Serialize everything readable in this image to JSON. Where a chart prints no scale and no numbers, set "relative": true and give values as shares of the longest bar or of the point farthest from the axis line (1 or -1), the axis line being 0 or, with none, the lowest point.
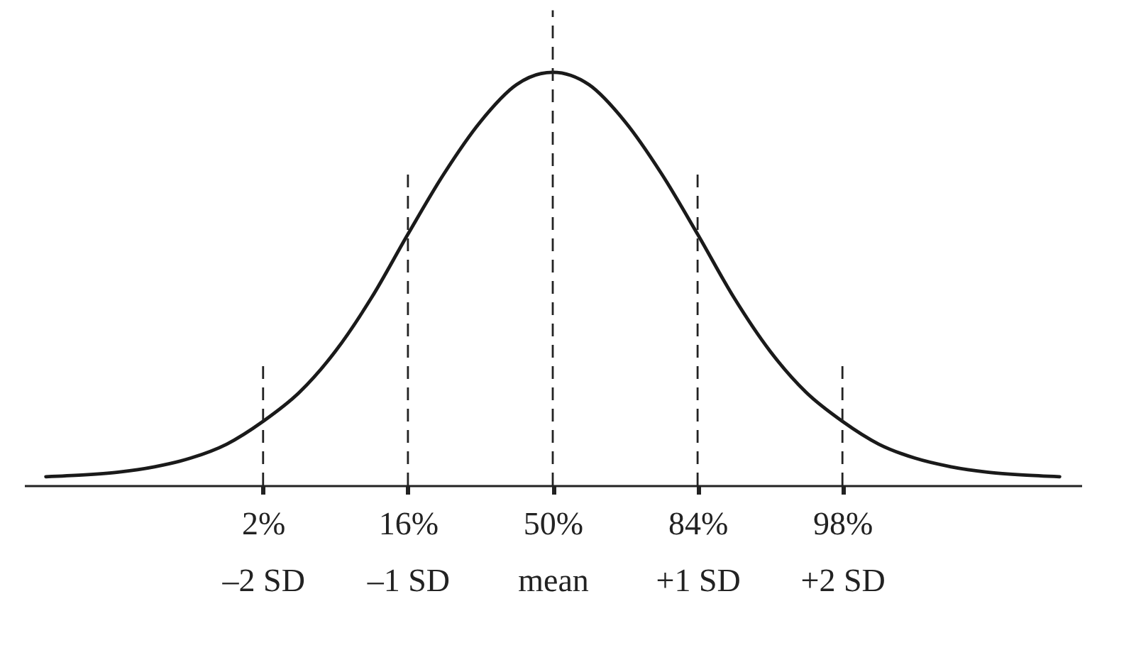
{
  "chart_data": {
    "type": "line",
    "relative": true,
    "categories": [
      null,
      null,
      null,
      null,
      null,
      null,
      "2%\n–2 SD",
      null,
      null,
      null,
      "16%\n–1 SD",
      null,
      null,
      null,
      "50%\nmean",
      null,
      null,
      null,
      "84%\n+1 SD",
      null,
      null,
      null,
      "98%\n+2 SD",
      null,
      null,
      null,
      null,
      null,
      null
    ],
    "series": [
      {
        "color": "#1a1a1a",
        "values": [
          0.021,
          0.025,
          0.032,
          0.045,
          0.066,
          0.1,
          0.155,
          0.225,
          0.325,
          0.455,
          0.608,
          0.755,
          0.88,
          0.97,
          1.0,
          0.97,
          0.88,
          0.755,
          0.608,
          0.455,
          0.325,
          0.225,
          0.155,
          0.1,
          0.066,
          0.045,
          0.032,
          0.025,
          0.021
        ]
      }
    ],
    "ref_lines": [
      {
        "axis": "x",
        "value": "2%\n–2 SD",
        "color": "#222222",
        "line_style": "dashed"
      },
      {
        "axis": "x",
        "value": "16%\n–1 SD",
        "color": "#222222",
        "line_style": "dashed"
      },
      {
        "axis": "x",
        "value": "50%\nmean",
        "color": "#222222",
        "line_style": "dashed"
      },
      {
        "axis": "x",
        "value": "84%\n+1 SD",
        "color": "#222222",
        "line_style": "dashed"
      },
      {
        "axis": "x",
        "value": "98%\n+2 SD",
        "color": "#222222",
        "line_style": "dashed"
      }
    ],
    "grid": false,
    "tick_labels": "x",
    "marker": "none",
    "line_style": "solid"
  }
}
